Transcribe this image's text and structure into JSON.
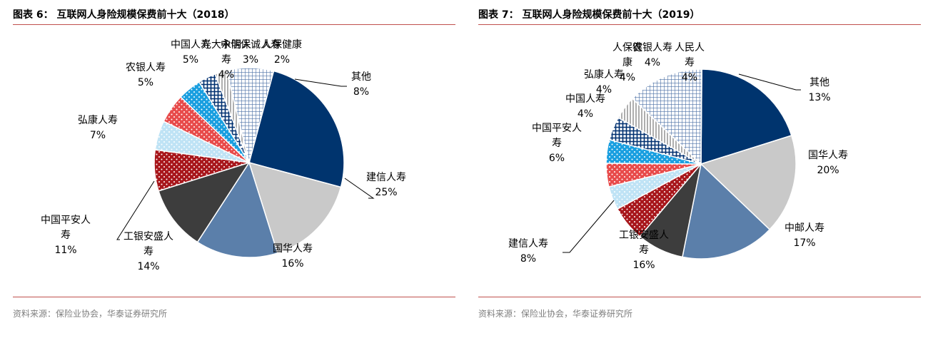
{
  "panels": [
    {
      "title": "图表 6：  互联网人身险规模保费前十大（2018）",
      "source": "资料来源：保险业协会，华泰证券研究所"
    },
    {
      "title": "图表 7：  互联网人身险规模保费前十大（2019）",
      "source": "资料来源：保险业协会，华泰证券研究所"
    }
  ],
  "chart_data": [
    {
      "type": "pie",
      "title": "图表 6：  互联网人身险规模保费前十大（2018）",
      "slices": [
        {
          "label": "建信人寿",
          "value": 25,
          "display": "25%"
        },
        {
          "label": "国华人寿",
          "value": 16,
          "display": "16%"
        },
        {
          "label": "工银安盛人寿",
          "value": 14,
          "display": "14%"
        },
        {
          "label": "中国平安人寿",
          "value": 11,
          "display": "11%"
        },
        {
          "label": "弘康人寿",
          "value": 7,
          "display": "7%"
        },
        {
          "label": "农银人寿",
          "value": 5,
          "display": "5%"
        },
        {
          "label": "中国人寿",
          "value": 5,
          "display": "5%"
        },
        {
          "label": "光大永明人寿",
          "value": 4,
          "display": "4%"
        },
        {
          "label": "中信保诚人寿",
          "value": 3,
          "display": "3%"
        },
        {
          "label": "人保健康",
          "value": 2,
          "display": "2%"
        },
        {
          "label": "其他",
          "value": 8,
          "display": "8%"
        }
      ]
    },
    {
      "type": "pie",
      "title": "图表 7：  互联网人身险规模保费前十大（2019）",
      "slices": [
        {
          "label": "国华人寿",
          "value": 20,
          "display": "20%"
        },
        {
          "label": "中邮人寿",
          "value": 17,
          "display": "17%"
        },
        {
          "label": "工银安盛人寿",
          "value": 16,
          "display": "16%"
        },
        {
          "label": "建信人寿",
          "value": 8,
          "display": "8%"
        },
        {
          "label": "中国平安人寿",
          "value": 6,
          "display": "6%"
        },
        {
          "label": "中国人寿",
          "value": 4,
          "display": "4%"
        },
        {
          "label": "弘康人寿",
          "value": 4,
          "display": "4%"
        },
        {
          "label": "人保健康",
          "value": 4,
          "display": "4%"
        },
        {
          "label": "农银人寿",
          "value": 4,
          "display": "4%"
        },
        {
          "label": "人民人寿",
          "value": 4,
          "display": "4%"
        },
        {
          "label": "其他",
          "value": 13,
          "display": "13%"
        }
      ]
    }
  ]
}
